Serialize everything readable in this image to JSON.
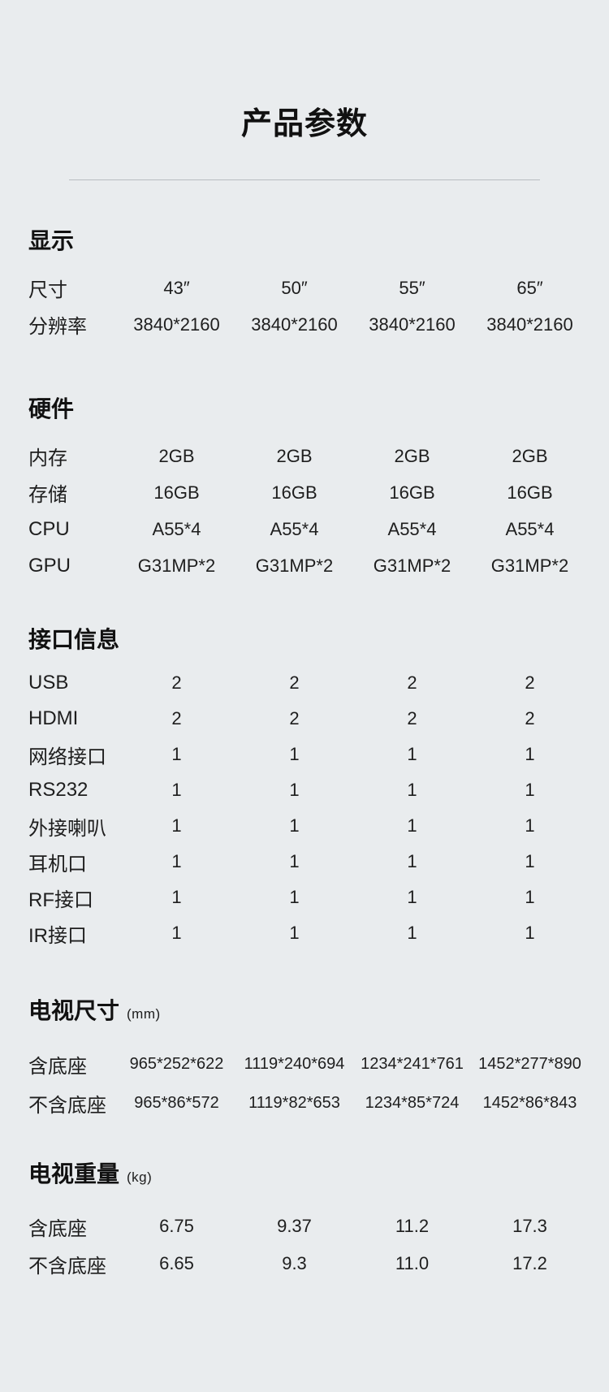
{
  "page": {
    "title": "产品参数",
    "background_color": "#e9ecee",
    "text_color": "#1c1c1c",
    "divider_color": "#b8bdc1"
  },
  "sections": [
    {
      "id": "display",
      "heading": "显示",
      "unit": "",
      "rows": [
        {
          "label": "尺寸",
          "values": [
            "43″",
            "50″",
            "55″",
            "65″"
          ]
        },
        {
          "label": "分辨率",
          "values": [
            "3840*2160",
            "3840*2160",
            "3840*2160",
            "3840*2160"
          ]
        }
      ]
    },
    {
      "id": "hardware",
      "heading": "硬件",
      "unit": "",
      "rows": [
        {
          "label": "内存",
          "values": [
            "2GB",
            "2GB",
            "2GB",
            "2GB"
          ]
        },
        {
          "label": "存储",
          "values": [
            "16GB",
            "16GB",
            "16GB",
            "16GB"
          ]
        },
        {
          "label": "CPU",
          "values": [
            "A55*4",
            "A55*4",
            "A55*4",
            "A55*4"
          ]
        },
        {
          "label": "GPU",
          "values": [
            "G31MP*2",
            "G31MP*2",
            "G31MP*2",
            "G31MP*2"
          ]
        }
      ]
    },
    {
      "id": "ports",
      "heading": "接口信息",
      "unit": "",
      "rows": [
        {
          "label": "USB",
          "values": [
            "2",
            "2",
            "2",
            "2"
          ]
        },
        {
          "label": "HDMI",
          "values": [
            "2",
            "2",
            "2",
            "2"
          ]
        },
        {
          "label": "网络接口",
          "values": [
            "1",
            "1",
            "1",
            "1"
          ]
        },
        {
          "label": "RS232",
          "values": [
            "1",
            "1",
            "1",
            "1"
          ]
        },
        {
          "label": "外接喇叭",
          "values": [
            "1",
            "1",
            "1",
            "1"
          ]
        },
        {
          "label": "耳机口",
          "values": [
            "1",
            "1",
            "1",
            "1"
          ]
        },
        {
          "label": "RF接口",
          "values": [
            "1",
            "1",
            "1",
            "1"
          ]
        },
        {
          "label": "IR接口",
          "values": [
            "1",
            "1",
            "1",
            "1"
          ]
        }
      ]
    },
    {
      "id": "dimensions",
      "heading": "电视尺寸",
      "unit": "(mm)",
      "rows": [
        {
          "label": "含底座",
          "values": [
            "965*252*622",
            "1119*240*694",
            "1234*241*761",
            "1452*277*890"
          ]
        },
        {
          "label": "不含底座",
          "values": [
            "965*86*572",
            "1119*82*653",
            "1234*85*724",
            "1452*86*843"
          ]
        }
      ]
    },
    {
      "id": "weight",
      "heading": "电视重量",
      "unit": "(kg)",
      "rows": [
        {
          "label": "含底座",
          "values": [
            "6.75",
            "9.37",
            "11.2",
            "17.3"
          ]
        },
        {
          "label": "不含底座",
          "values": [
            "6.65",
            "9.3",
            "11.0",
            "17.2"
          ]
        }
      ]
    }
  ]
}
